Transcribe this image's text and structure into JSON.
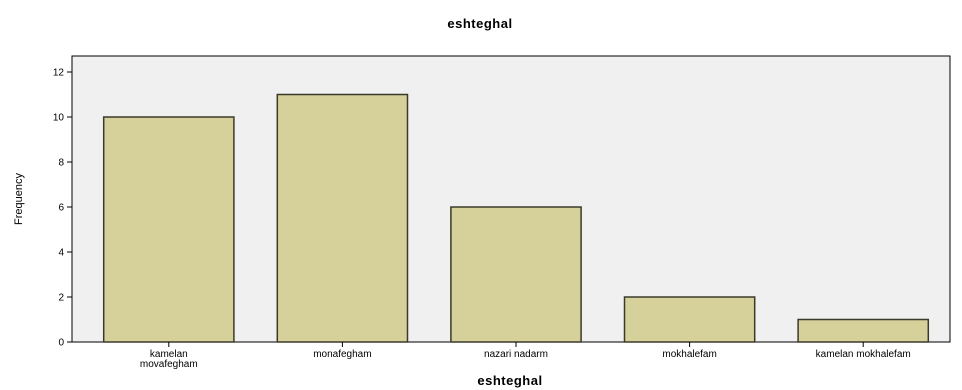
{
  "chart_data": {
    "type": "bar",
    "title": "eshteghal",
    "xlabel": "eshteghal",
    "ylabel": "Frequency",
    "categories": [
      [
        "kamelan",
        "movafegham"
      ],
      [
        "monafegham"
      ],
      [
        "nazari nadarm"
      ],
      [
        "mokhalefam"
      ],
      [
        "kamelan mokhalefam"
      ]
    ],
    "values": [
      10,
      11,
      6,
      2,
      1
    ],
    "ylim": [
      0,
      12
    ],
    "yticks": [
      0,
      2,
      4,
      6,
      8,
      10,
      12
    ],
    "grid": false,
    "legend": "none",
    "colors": {
      "bar_fill": "#d6d09a",
      "bar_stroke": "#3a3a2a",
      "plot_bg": "#f0f0f0",
      "axis": "#000000"
    }
  }
}
